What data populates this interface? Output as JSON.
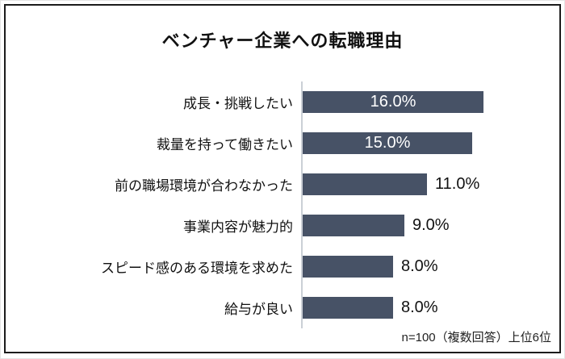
{
  "chart_data": {
    "type": "bar",
    "orientation": "horizontal",
    "title": "ベンチャー企業への転職理由",
    "categories": [
      "成長・挑戦したい",
      "裁量を持って働きたい",
      "前の職場環境が合わなかった",
      "事業内容が魅力的",
      "スピード感のある環境を求めた",
      "給与が良い"
    ],
    "values": [
      16.0,
      15.0,
      11.0,
      9.0,
      8.0,
      8.0
    ],
    "value_labels": [
      "16.0%",
      "15.0%",
      "11.0%",
      "9.0%",
      "8.0%",
      "8.0%"
    ],
    "label_positions": [
      "inside",
      "inside",
      "outside",
      "outside",
      "outside",
      "outside"
    ],
    "footnote": "n=100（複数回答）上位6位",
    "xlabel": "",
    "ylabel": "",
    "xlim": [
      0,
      22.5
    ],
    "grid": false,
    "legend": false,
    "colors": {
      "bar": "#475266",
      "axis_line": "#cbd0d6",
      "value_inside": "#ffffff",
      "value_outside": "#111111",
      "frame_border": "#1b1b1b",
      "title_text": "#111111"
    }
  }
}
